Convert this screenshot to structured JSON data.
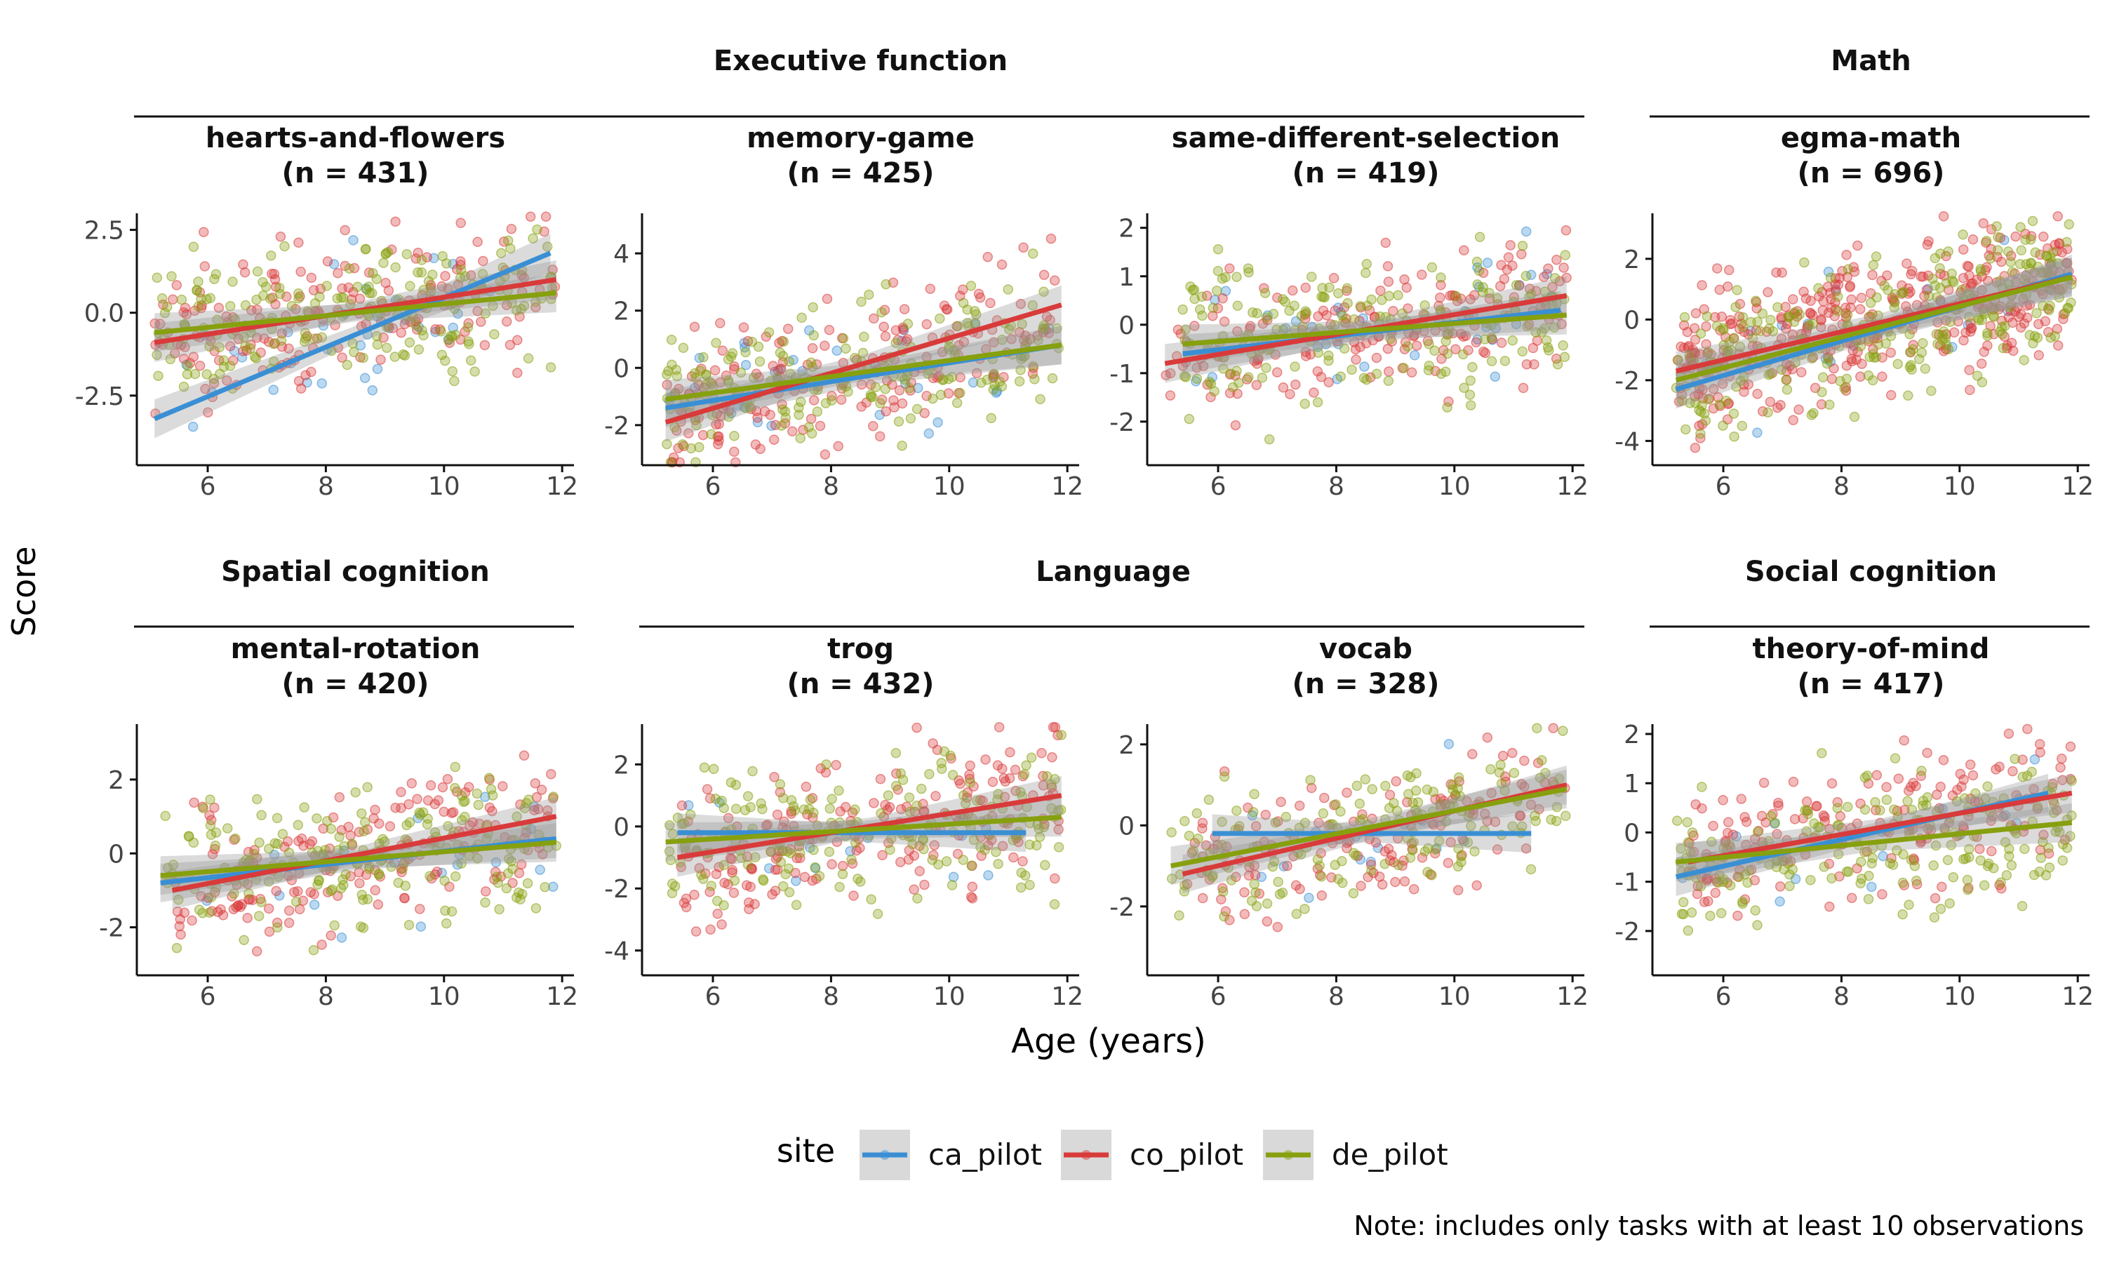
{
  "y_axis_title": "Score",
  "x_axis_title": "Age (years)",
  "legend": {
    "title": "site",
    "items": [
      {
        "label": "ca_pilot",
        "color": "#3a8fd4"
      },
      {
        "label": "co_pilot",
        "color": "#d93a3a"
      },
      {
        "label": "de_pilot",
        "color": "#86a00e"
      }
    ]
  },
  "note": "Note: includes only tasks with at least 10 observations",
  "groups": [
    {
      "label": "Executive function",
      "panels": [
        0,
        1,
        2
      ]
    },
    {
      "label": "Math",
      "panels": [
        3
      ]
    },
    {
      "label": "Spatial cognition",
      "panels": [
        4
      ]
    },
    {
      "label": "Language",
      "panels": [
        5,
        6
      ]
    },
    {
      "label": "Social cognition",
      "panels": [
        7
      ]
    }
  ],
  "chart_data": [
    {
      "type": "scatter",
      "title": "hearts-and-flowers",
      "n_label": "(n = 431)",
      "n": 431,
      "x_ticks": [
        6,
        8,
        10,
        12
      ],
      "y_ticks": [
        2.5,
        0.0,
        -2.5
      ],
      "y_tick_labels": [
        "2.5",
        "0.0",
        "-2.5"
      ],
      "ylim": [
        -4.6,
        3.0
      ],
      "xlim": [
        4.8,
        12.2
      ],
      "series": [
        {
          "name": "ca_pilot",
          "fit": [
            [
              5.1,
              -3.2
            ],
            [
              11.8,
              1.8
            ]
          ],
          "n_points": 35
        },
        {
          "name": "co_pilot",
          "fit": [
            [
              5.1,
              -0.9
            ],
            [
              11.9,
              1.0
            ]
          ],
          "n_points": 200
        },
        {
          "name": "de_pilot",
          "fit": [
            [
              5.1,
              -0.6
            ],
            [
              11.9,
              0.6
            ]
          ],
          "n_points": 200
        }
      ]
    },
    {
      "type": "scatter",
      "title": "memory-game",
      "n_label": "(n = 425)",
      "n": 425,
      "x_ticks": [
        6,
        8,
        10,
        12
      ],
      "y_ticks": [
        4,
        2,
        0,
        -2
      ],
      "y_tick_labels": [
        "4",
        "2",
        "0",
        "-2"
      ],
      "ylim": [
        -3.4,
        5.4
      ],
      "xlim": [
        4.8,
        12.2
      ],
      "series": [
        {
          "name": "ca_pilot",
          "fit": [
            [
              5.2,
              -1.4
            ],
            [
              11.9,
              0.8
            ]
          ],
          "n_points": 35
        },
        {
          "name": "co_pilot",
          "fit": [
            [
              5.2,
              -1.9
            ],
            [
              11.9,
              2.2
            ]
          ],
          "n_points": 200
        },
        {
          "name": "de_pilot",
          "fit": [
            [
              5.2,
              -1.1
            ],
            [
              11.9,
              0.8
            ]
          ],
          "n_points": 200
        }
      ]
    },
    {
      "type": "scatter",
      "title": "same-different-selection",
      "n_label": "(n = 419)",
      "n": 419,
      "x_ticks": [
        6,
        8,
        10,
        12
      ],
      "y_ticks": [
        2,
        1,
        0,
        -1,
        -2
      ],
      "y_tick_labels": [
        "2",
        "1",
        "0",
        "-1",
        "-2"
      ],
      "ylim": [
        -2.9,
        2.3
      ],
      "xlim": [
        4.8,
        12.2
      ],
      "series": [
        {
          "name": "ca_pilot",
          "fit": [
            [
              5.4,
              -0.6
            ],
            [
              11.8,
              0.3
            ]
          ],
          "n_points": 35
        },
        {
          "name": "co_pilot",
          "fit": [
            [
              5.1,
              -0.8
            ],
            [
              11.9,
              0.6
            ]
          ],
          "n_points": 190
        },
        {
          "name": "de_pilot",
          "fit": [
            [
              5.4,
              -0.4
            ],
            [
              11.9,
              0.2
            ]
          ],
          "n_points": 200
        }
      ]
    },
    {
      "type": "scatter",
      "title": "egma-math",
      "n_label": "(n = 696)",
      "n": 696,
      "x_ticks": [
        6,
        8,
        10,
        12
      ],
      "y_ticks": [
        2,
        0,
        -2,
        -4
      ],
      "y_tick_labels": [
        "2",
        "0",
        "-2",
        "-4"
      ],
      "ylim": [
        -4.8,
        3.5
      ],
      "xlim": [
        4.8,
        12.2
      ],
      "series": [
        {
          "name": "ca_pilot",
          "fit": [
            [
              5.2,
              -2.3
            ],
            [
              11.9,
              1.5
            ]
          ],
          "n_points": 20
        },
        {
          "name": "co_pilot",
          "fit": [
            [
              5.2,
              -1.7
            ],
            [
              11.9,
              1.4
            ]
          ],
          "n_points": 400
        },
        {
          "name": "de_pilot",
          "fit": [
            [
              5.2,
              -2.0
            ],
            [
              11.9,
              1.4
            ]
          ],
          "n_points": 270
        }
      ]
    },
    {
      "type": "scatter",
      "title": "mental-rotation",
      "n_label": "(n = 420)",
      "n": 420,
      "x_ticks": [
        6,
        8,
        10,
        12
      ],
      "y_ticks": [
        2,
        0,
        -2
      ],
      "y_tick_labels": [
        "2",
        "0",
        "-2"
      ],
      "ylim": [
        -3.3,
        3.5
      ],
      "xlim": [
        4.8,
        12.2
      ],
      "series": [
        {
          "name": "ca_pilot",
          "fit": [
            [
              5.2,
              -0.8
            ],
            [
              11.9,
              0.4
            ]
          ],
          "n_points": 20
        },
        {
          "name": "co_pilot",
          "fit": [
            [
              5.4,
              -1.0
            ],
            [
              11.9,
              1.0
            ]
          ],
          "n_points": 190
        },
        {
          "name": "de_pilot",
          "fit": [
            [
              5.2,
              -0.6
            ],
            [
              11.9,
              0.3
            ]
          ],
          "n_points": 200
        }
      ]
    },
    {
      "type": "scatter",
      "title": "trog",
      "n_label": "(n = 432)",
      "n": 432,
      "x_ticks": [
        6,
        8,
        10,
        12
      ],
      "y_ticks": [
        2,
        0,
        -2,
        -4
      ],
      "y_tick_labels": [
        "2",
        "0",
        "-2",
        "-4"
      ],
      "ylim": [
        -4.8,
        3.3
      ],
      "xlim": [
        4.8,
        12.2
      ],
      "series": [
        {
          "name": "ca_pilot",
          "fit": [
            [
              5.4,
              -0.2
            ],
            [
              11.3,
              -0.2
            ]
          ],
          "n_points": 15
        },
        {
          "name": "co_pilot",
          "fit": [
            [
              5.4,
              -1.0
            ],
            [
              11.9,
              1.0
            ]
          ],
          "n_points": 200
        },
        {
          "name": "de_pilot",
          "fit": [
            [
              5.2,
              -0.5
            ],
            [
              11.9,
              0.3
            ]
          ],
          "n_points": 200
        }
      ]
    },
    {
      "type": "scatter",
      "title": "vocab",
      "n_label": "(n = 328)",
      "n": 328,
      "x_ticks": [
        6,
        8,
        10,
        12
      ],
      "y_ticks": [
        2,
        0,
        -2
      ],
      "y_tick_labels": [
        "2",
        "0",
        "-2"
      ],
      "ylim": [
        -3.7,
        2.5
      ],
      "xlim": [
        4.8,
        12.2
      ],
      "series": [
        {
          "name": "ca_pilot",
          "fit": [
            [
              5.9,
              -0.2
            ],
            [
              11.3,
              -0.2
            ]
          ],
          "n_points": 15
        },
        {
          "name": "co_pilot",
          "fit": [
            [
              5.4,
              -1.2
            ],
            [
              11.9,
              1.0
            ]
          ],
          "n_points": 150
        },
        {
          "name": "de_pilot",
          "fit": [
            [
              5.2,
              -1.0
            ],
            [
              11.9,
              0.9
            ]
          ],
          "n_points": 160
        }
      ]
    },
    {
      "type": "scatter",
      "title": "theory-of-mind",
      "n_label": "(n = 417)",
      "n": 417,
      "x_ticks": [
        6,
        8,
        10,
        12
      ],
      "y_ticks": [
        2,
        1,
        0,
        -1,
        -2
      ],
      "y_tick_labels": [
        "2",
        "1",
        "0",
        "-1",
        "-2"
      ],
      "ylim": [
        -2.9,
        2.2
      ],
      "xlim": [
        4.8,
        12.2
      ],
      "series": [
        {
          "name": "ca_pilot",
          "fit": [
            [
              5.2,
              -0.9
            ],
            [
              11.5,
              0.8
            ]
          ],
          "n_points": 15
        },
        {
          "name": "co_pilot",
          "fit": [
            [
              5.4,
              -0.6
            ],
            [
              11.9,
              0.8
            ]
          ],
          "n_points": 190
        },
        {
          "name": "de_pilot",
          "fit": [
            [
              5.2,
              -0.6
            ],
            [
              11.9,
              0.2
            ]
          ],
          "n_points": 200
        }
      ]
    }
  ]
}
